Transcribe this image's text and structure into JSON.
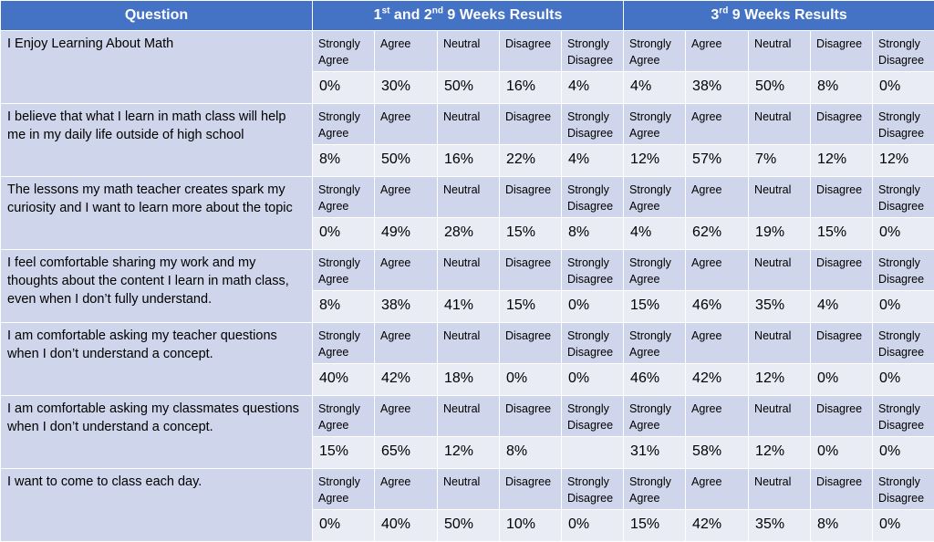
{
  "header": {
    "question": "Question",
    "period1": {
      "n1": "1",
      "s1": "st",
      "mid": " and 2",
      "s2": "nd",
      "rest": " 9 Weeks Results"
    },
    "period2": {
      "n": "3",
      "s": "rd",
      "rest": " 9 Weeks Results"
    }
  },
  "labels": [
    "Strongly Agree",
    "Agree",
    "Neutral",
    "Disagree",
    "Strongly Disagree"
  ],
  "rows": [
    {
      "question": "I Enjoy Learning About Math",
      "p1": [
        "0%",
        "30%",
        "50%",
        "16%",
        "4%"
      ],
      "p2": [
        "4%",
        "38%",
        "50%",
        "8%",
        "0%"
      ]
    },
    {
      "question": "I believe that what I learn in math class will help me in my daily life outside of high school",
      "p1": [
        "8%",
        "50%",
        "16%",
        "22%",
        "4%"
      ],
      "p2": [
        "12%",
        "57%",
        "7%",
        "12%",
        "12%"
      ]
    },
    {
      "question": "The lessons my math teacher creates spark my curiosity and I want to learn more about the topic",
      "p1": [
        "0%",
        "49%",
        "28%",
        "15%",
        "8%"
      ],
      "p2": [
        "4%",
        "62%",
        "19%",
        "15%",
        "0%"
      ]
    },
    {
      "question": "I feel comfortable sharing my work and my thoughts about the content I learn in math class, even when I don’t fully understand.",
      "p1": [
        "8%",
        "38%",
        "41%",
        "15%",
        "0%"
      ],
      "p2": [
        "15%",
        "46%",
        "35%",
        "4%",
        "0%"
      ]
    },
    {
      "question": "I am comfortable asking my teacher questions when I don’t understand a concept.",
      "p1": [
        "40%",
        "42%",
        "18%",
        "0%",
        "0%"
      ],
      "p2": [
        "46%",
        "42%",
        "12%",
        "0%",
        "0%"
      ]
    },
    {
      "question": "I am comfortable asking my classmates questions when I don’t understand a concept.",
      "p1": [
        "15%",
        "65%",
        "12%",
        "8%",
        ""
      ],
      "p2": [
        "31%",
        "58%",
        "12%",
        "0%",
        "0%"
      ]
    },
    {
      "question": "I want to come to class each day.",
      "p1": [
        "0%",
        "40%",
        "50%",
        "10%",
        "0%"
      ],
      "p2": [
        "15%",
        "42%",
        "35%",
        "8%",
        "0%"
      ]
    }
  ]
}
